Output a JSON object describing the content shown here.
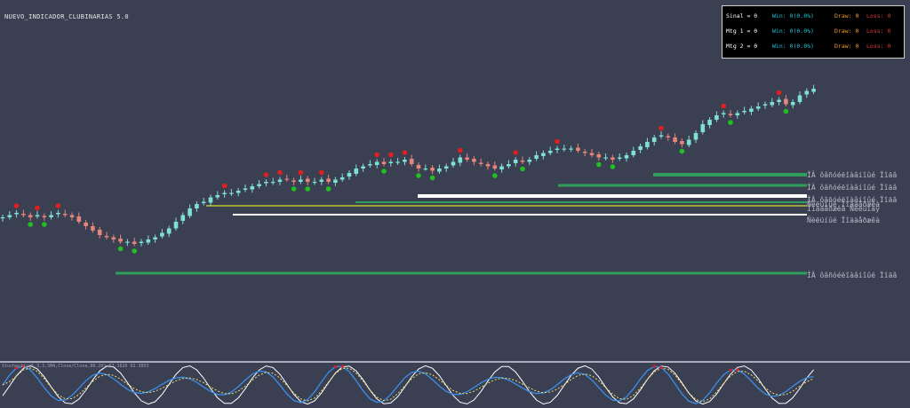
{
  "indicator_title": "NUEVO_INDICADOR_CLUBINARIAS 5.0",
  "stats": [
    {
      "label": "Sinal = 0",
      "win": "Win: 0(0.0%)",
      "draw": "Draw: 0",
      "loss": "Loss: 0"
    },
    {
      "label": "Mtg 1 = 0",
      "win": "Win: 0(0.0%)",
      "draw": "Draw: 0",
      "loss": "Loss: 0"
    },
    {
      "label": "Mtg 2 = 0",
      "win": "Win: 0(0.0%)",
      "draw": "Draw: 0",
      "loss": "Loss: 0"
    }
  ],
  "colors": {
    "background": "#3a3f52",
    "bull": "#7fe0d4",
    "bear": "#e8857a",
    "support_line": "#2e9e5a",
    "yellow_line": "#9aa23a",
    "white_line": "#ffffff",
    "sell_signal": "#e02020",
    "buy_signal": "#20c020",
    "stoch_main": "#3a8fe8",
    "stoch_signal": "#f0e070",
    "stoch_white": "#ffffff"
  },
  "chart_data": {
    "type": "candlestick",
    "price_line_labels": [
      "ÎÂ ôâñóéëîàâíîûé Ïîäâ",
      "ÎÂ ôâñóéëîàâíîûé Ïîäâ",
      "ÎÂ ôâñóéëîàâíîûé Ïîäâ",
      "Ñèëüíûé Ïîääåðæêà",
      "Ïîääåðæêà Ñèëüíàÿ",
      "Ñèëüíûé Ïîääåðæêà",
      "ÎÂ ôâñóéëîàâíîûé Ïîäâ"
    ],
    "lower_panel_label": "Stochastic(5,3,3,SMA,Close/Close,80,20) 67.1626 62.3853",
    "series": [
      {
        "name": "close",
        "values": [
          46,
          47,
          48,
          47,
          46,
          47,
          46,
          47,
          48,
          47,
          46,
          44,
          42,
          40,
          38,
          37,
          36,
          35,
          35,
          34,
          35,
          36,
          37,
          39,
          41,
          44,
          47,
          50,
          52,
          53,
          55,
          56,
          57,
          57,
          58,
          59,
          60,
          61,
          62,
          62,
          63,
          63,
          62,
          63,
          62,
          62,
          63,
          62,
          63,
          64,
          66,
          68,
          69,
          70,
          71,
          70,
          71,
          71,
          72,
          70,
          68,
          68,
          67,
          68,
          69,
          71,
          73,
          72,
          71,
          70,
          69,
          68,
          69,
          70,
          72,
          71,
          72,
          74,
          75,
          76,
          77,
          77,
          77,
          76,
          75,
          74,
          73,
          73,
          72,
          73,
          74,
          76,
          78,
          80,
          82,
          83,
          82,
          80,
          79,
          81,
          84,
          88,
          90,
          92,
          93,
          92,
          93,
          94,
          95,
          96,
          97,
          98,
          99,
          97,
          98,
          101,
          103,
          104
        ]
      }
    ]
  }
}
